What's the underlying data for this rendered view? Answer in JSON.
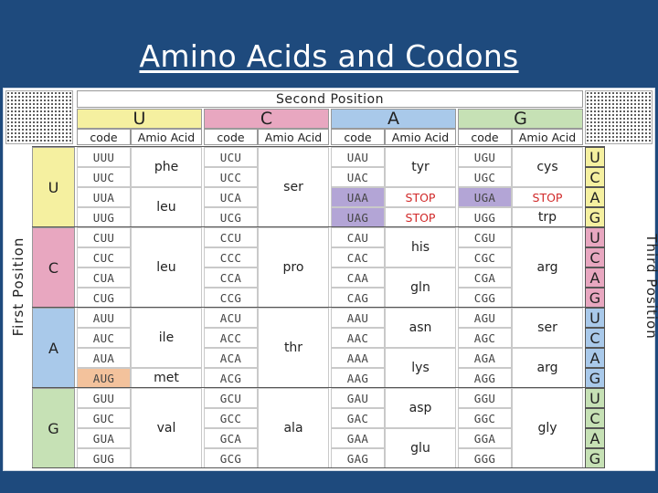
{
  "title": "Amino Acids and Codons",
  "header": {
    "second_position": "Second Position",
    "first_position": "First Position",
    "third_position": "Third Position"
  },
  "columns": [
    {
      "base": "U",
      "color": "#f5f0a0",
      "code_label": "code",
      "acid_label": "Amio Acid"
    },
    {
      "base": "C",
      "color": "#e8a7c0",
      "code_label": "code",
      "acid_label": "Amio Acid"
    },
    {
      "base": "A",
      "color": "#a9c9ea",
      "code_label": "code",
      "acid_label": "Amio Acid"
    },
    {
      "base": "G",
      "color": "#c6e1b5",
      "code_label": "code",
      "acid_label": "Amio Acid"
    }
  ],
  "rows": [
    {
      "base": "U",
      "color": "#f5f0a0"
    },
    {
      "base": "C",
      "color": "#e8a7c0"
    },
    {
      "base": "A",
      "color": "#a9c9ea"
    },
    {
      "base": "G",
      "color": "#c6e1b5"
    }
  ],
  "third_bases": [
    "U",
    "C",
    "A",
    "G",
    "U",
    "C",
    "A",
    "G",
    "U",
    "C",
    "A",
    "G",
    "U",
    "C",
    "A",
    "G"
  ],
  "codons": [
    [
      "UUU",
      "UCU",
      "UAU",
      "UGU"
    ],
    [
      "UUC",
      "UCC",
      "UAC",
      "UGC"
    ],
    [
      "UUA",
      "UCA",
      "UAA",
      "UGA"
    ],
    [
      "UUG",
      "UCG",
      "UAG",
      "UGG"
    ],
    [
      "CUU",
      "CCU",
      "CAU",
      "CGU"
    ],
    [
      "CUC",
      "CCC",
      "CAC",
      "CGC"
    ],
    [
      "CUA",
      "CCA",
      "CAA",
      "CGA"
    ],
    [
      "CUG",
      "CCG",
      "CAG",
      "CGG"
    ],
    [
      "AUU",
      "ACU",
      "AAU",
      "AGU"
    ],
    [
      "AUC",
      "ACC",
      "AAC",
      "AGC"
    ],
    [
      "AUA",
      "ACA",
      "AAA",
      "AGA"
    ],
    [
      "AUG",
      "ACG",
      "AAG",
      "AGG"
    ],
    [
      "GUU",
      "GCU",
      "GAU",
      "GGU"
    ],
    [
      "GUC",
      "GCC",
      "GAC",
      "GGC"
    ],
    [
      "GUA",
      "GCA",
      "GAA",
      "GGA"
    ],
    [
      "GUG",
      "GCG",
      "GAG",
      "GGG"
    ]
  ],
  "highlight_colors": {
    "stop_codon": "#b3a5d6",
    "start_codon": "#f3c29c"
  },
  "highlights": [
    {
      "row": 2,
      "col": 2,
      "kind": "stop_codon"
    },
    {
      "row": 3,
      "col": 2,
      "kind": "stop_codon"
    },
    {
      "row": 2,
      "col": 3,
      "kind": "stop_codon"
    },
    {
      "row": 11,
      "col": 0,
      "kind": "start_codon"
    }
  ],
  "amino_acids": [
    [
      {
        "start": 0,
        "span": 2,
        "label": "phe"
      },
      {
        "start": 2,
        "span": 2,
        "label": "leu"
      },
      {
        "start": 4,
        "span": 4,
        "label": "leu"
      },
      {
        "start": 8,
        "span": 3,
        "label": "ile"
      },
      {
        "start": 11,
        "span": 1,
        "label": "met"
      },
      {
        "start": 12,
        "span": 4,
        "label": "val"
      }
    ],
    [
      {
        "start": 0,
        "span": 4,
        "label": "ser"
      },
      {
        "start": 4,
        "span": 4,
        "label": "pro"
      },
      {
        "start": 8,
        "span": 4,
        "label": "thr"
      },
      {
        "start": 12,
        "span": 4,
        "label": "ala"
      }
    ],
    [
      {
        "start": 0,
        "span": 2,
        "label": "tyr"
      },
      {
        "start": 2,
        "span": 1,
        "label": "STOP",
        "stop": true
      },
      {
        "start": 3,
        "span": 1,
        "label": "STOP",
        "stop": true
      },
      {
        "start": 4,
        "span": 2,
        "label": "his"
      },
      {
        "start": 6,
        "span": 2,
        "label": "gln"
      },
      {
        "start": 8,
        "span": 2,
        "label": "asn"
      },
      {
        "start": 10,
        "span": 2,
        "label": "lys"
      },
      {
        "start": 12,
        "span": 2,
        "label": "asp"
      },
      {
        "start": 14,
        "span": 2,
        "label": "glu"
      }
    ],
    [
      {
        "start": 0,
        "span": 2,
        "label": "cys"
      },
      {
        "start": 2,
        "span": 1,
        "label": "STOP",
        "stop": true
      },
      {
        "start": 3,
        "span": 1,
        "label": "trp"
      },
      {
        "start": 4,
        "span": 4,
        "label": "arg"
      },
      {
        "start": 8,
        "span": 2,
        "label": "ser"
      },
      {
        "start": 10,
        "span": 2,
        "label": "arg"
      },
      {
        "start": 12,
        "span": 4,
        "label": "gly"
      }
    ]
  ]
}
